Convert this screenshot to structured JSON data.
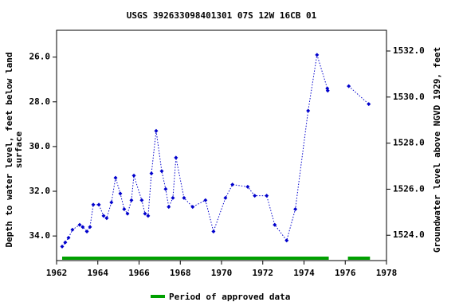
{
  "chart_data": {
    "type": "line",
    "title": "USGS 392633098401301 07S 12W 16CB  01",
    "ylabel": [
      "Depth to water level, feet below land",
      "surface"
    ],
    "y2label": "Groundwater level above NGVD 1929, feet",
    "xlim": [
      1962,
      1978
    ],
    "xticks": [
      1962,
      1964,
      1966,
      1968,
      1970,
      1972,
      1974,
      1976,
      1978
    ],
    "ylim": [
      35.1,
      24.8
    ],
    "yticks": [
      {
        "value": 26,
        "label": "26.0"
      },
      {
        "value": 28,
        "label": "28.0"
      },
      {
        "value": 30,
        "label": "30.0"
      },
      {
        "value": 32,
        "label": "32.0"
      },
      {
        "value": 34,
        "label": "34.0"
      }
    ],
    "y2lim": [
      1522.9,
      1532.9
    ],
    "y2ticks": [
      {
        "value": 1524,
        "label": "1524.0"
      },
      {
        "value": 1526,
        "label": "1526.0"
      },
      {
        "value": 1528,
        "label": "1528.0"
      },
      {
        "value": 1530,
        "label": "1530.0"
      },
      {
        "value": 1532,
        "label": "1532.0"
      }
    ],
    "x": [
      1962.27,
      1962.42,
      1962.58,
      1962.77,
      1963.12,
      1963.27,
      1963.47,
      1963.62,
      1963.78,
      1964.05,
      1964.28,
      1964.43,
      1964.66,
      1964.86,
      1965.09,
      1965.28,
      1965.44,
      1965.63,
      1965.75,
      1966.13,
      1966.29,
      1966.44,
      1966.6,
      1966.83,
      1967.1,
      1967.29,
      1967.44,
      1967.64,
      1967.79,
      1968.18,
      1968.6,
      1969.22,
      1969.61,
      1970.19,
      1970.53,
      1971.27,
      1971.61,
      1972.19,
      1972.58,
      1973.16,
      1973.58,
      1974.2,
      1974.63,
      1975.13,
      1975.15,
      null,
      1976.17,
      1977.14
    ],
    "series": [
      {
        "name": "Depth to water level",
        "color": "#0000cc",
        "values": [
          34.47,
          34.29,
          34.08,
          33.72,
          33.5,
          33.6,
          33.8,
          33.6,
          32.6,
          32.6,
          33.1,
          33.2,
          32.5,
          31.4,
          32.1,
          32.8,
          33.0,
          32.4,
          31.3,
          32.4,
          33.0,
          33.1,
          31.2,
          29.3,
          31.1,
          31.9,
          32.7,
          32.3,
          30.5,
          32.3,
          32.7,
          32.4,
          33.8,
          32.3,
          31.7,
          31.8,
          32.2,
          32.2,
          33.5,
          34.2,
          32.8,
          28.4,
          25.9,
          27.4,
          27.5,
          null,
          27.3,
          28.1
        ]
      }
    ],
    "approved": {
      "name": "Period of approved data",
      "color": "#00a000",
      "periods": [
        [
          1962.27,
          1975.2
        ],
        [
          1976.13,
          1977.2
        ]
      ]
    }
  }
}
